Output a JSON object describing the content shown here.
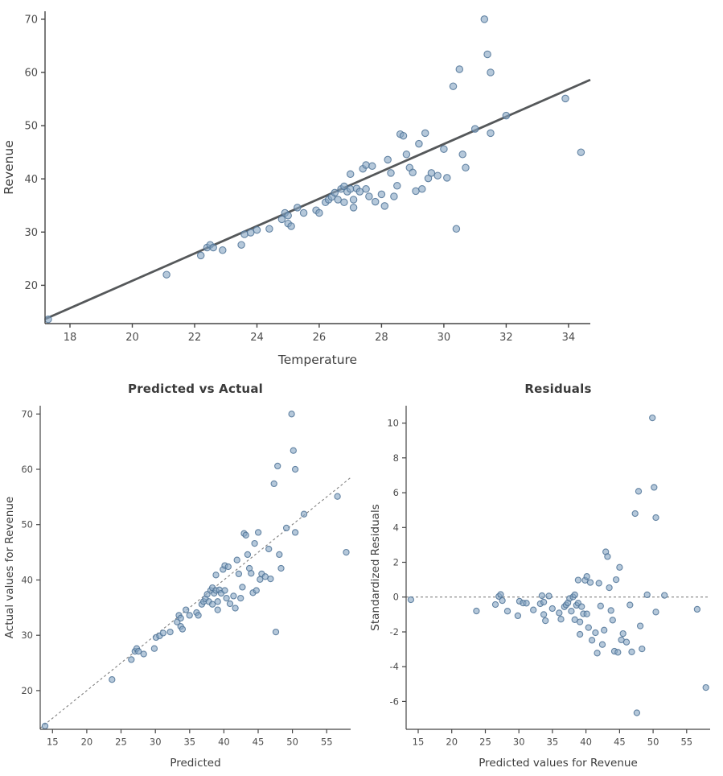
{
  "colors": {
    "point_fill": "#87a7c3",
    "point_stroke": "#4f7396",
    "fit_line": "#55585a",
    "dashed_line": "#808080",
    "axis": "#454545",
    "tick_text": "#4d4d4d",
    "label_text": "#3d3d3d",
    "title_text": "#3a3a3a"
  },
  "chart_data": [
    {
      "type": "scatter",
      "title": "",
      "xlabel": "Temperature",
      "ylabel": "Revenue",
      "xlim": [
        17.2,
        34.7
      ],
      "ylim": [
        12.8,
        71.5
      ],
      "xticks": [
        18,
        20,
        22,
        24,
        26,
        28,
        30,
        32,
        34
      ],
      "yticks": [
        20,
        30,
        40,
        50,
        60,
        70
      ],
      "x_field": "temperature",
      "y_field": "revenue",
      "grid": false,
      "legend": "none",
      "line": {
        "kind": "regression-fit",
        "slope": 2.57,
        "intercept": -30.55,
        "style": "solid"
      }
    },
    {
      "type": "scatter",
      "title": "Predicted vs Actual",
      "xlabel": "Predicted",
      "ylabel": "Actual values for Revenue",
      "xlim": [
        13.2,
        58.5
      ],
      "ylim": [
        13.0,
        71.5
      ],
      "xticks": [
        15,
        20,
        25,
        30,
        35,
        40,
        45,
        50,
        55
      ],
      "yticks": [
        20,
        30,
        40,
        50,
        60,
        70
      ],
      "x_field": "predicted",
      "y_field": "revenue",
      "grid": false,
      "legend": "none",
      "line": {
        "kind": "identity",
        "slope": 1,
        "intercept": 0,
        "style": "dashed"
      }
    },
    {
      "type": "scatter",
      "title": "Residuals",
      "xlabel": "Predicted values for Revenue",
      "ylabel": "Standardized Residuals",
      "xlim": [
        13.2,
        58.5
      ],
      "ylim": [
        -7.6,
        11.0
      ],
      "xticks": [
        15,
        20,
        25,
        30,
        35,
        40,
        45,
        50,
        55
      ],
      "yticks": [
        -6,
        -4,
        -2,
        0,
        2,
        4,
        6,
        8,
        10
      ],
      "x_field": "predicted",
      "y_field": "std_residual",
      "grid": false,
      "legend": "none",
      "line": {
        "kind": "zero-reference",
        "slope": 0,
        "intercept": 0,
        "style": "dashed"
      }
    }
  ],
  "points": [
    {
      "temperature": 17.3,
      "revenue": 13.6,
      "predicted": 13.91,
      "std_residual": -0.15
    },
    {
      "temperature": 21.1,
      "revenue": 22.0,
      "predicted": 23.68,
      "std_residual": -0.8
    },
    {
      "temperature": 22.2,
      "revenue": 25.6,
      "predicted": 26.5,
      "std_residual": -0.43
    },
    {
      "temperature": 22.4,
      "revenue": 27.1,
      "predicted": 27.02,
      "std_residual": 0.04
    },
    {
      "temperature": 22.5,
      "revenue": 27.6,
      "predicted": 27.28,
      "std_residual": 0.15
    },
    {
      "temperature": 22.6,
      "revenue": 27.1,
      "predicted": 27.53,
      "std_residual": -0.2
    },
    {
      "temperature": 22.9,
      "revenue": 26.6,
      "predicted": 28.3,
      "std_residual": -0.81
    },
    {
      "temperature": 23.5,
      "revenue": 27.6,
      "predicted": 29.85,
      "std_residual": -1.07
    },
    {
      "temperature": 23.6,
      "revenue": 29.6,
      "predicted": 30.1,
      "std_residual": -0.24
    },
    {
      "temperature": 23.8,
      "revenue": 29.9,
      "predicted": 30.62,
      "std_residual": -0.34
    },
    {
      "temperature": 24.0,
      "revenue": 30.4,
      "predicted": 31.13,
      "std_residual": -0.35
    },
    {
      "temperature": 24.4,
      "revenue": 30.6,
      "predicted": 32.16,
      "std_residual": -0.74
    },
    {
      "temperature": 24.8,
      "revenue": 32.4,
      "predicted": 33.19,
      "std_residual": -0.38
    },
    {
      "temperature": 24.9,
      "revenue": 33.6,
      "predicted": 33.44,
      "std_residual": 0.08
    },
    {
      "temperature": 25.0,
      "revenue": 33.1,
      "predicted": 33.7,
      "std_residual": -0.29
    },
    {
      "temperature": 25.0,
      "revenue": 31.6,
      "predicted": 33.7,
      "std_residual": -1.0
    },
    {
      "temperature": 25.1,
      "revenue": 31.1,
      "predicted": 33.96,
      "std_residual": -1.36
    },
    {
      "temperature": 25.3,
      "revenue": 34.6,
      "predicted": 34.47,
      "std_residual": 0.06
    },
    {
      "temperature": 25.5,
      "revenue": 33.6,
      "predicted": 34.99,
      "std_residual": -0.66
    },
    {
      "temperature": 25.9,
      "revenue": 34.1,
      "predicted": 36.01,
      "std_residual": -0.91
    },
    {
      "temperature": 26.0,
      "revenue": 33.6,
      "predicted": 36.27,
      "std_residual": -1.27
    },
    {
      "temperature": 26.2,
      "revenue": 35.6,
      "predicted": 36.78,
      "std_residual": -0.56
    },
    {
      "temperature": 26.3,
      "revenue": 36.1,
      "predicted": 37.04,
      "std_residual": -0.45
    },
    {
      "temperature": 26.4,
      "revenue": 36.6,
      "predicted": 37.3,
      "std_residual": -0.33
    },
    {
      "temperature": 26.5,
      "revenue": 37.4,
      "predicted": 37.56,
      "std_residual": -0.08
    },
    {
      "temperature": 26.6,
      "revenue": 36.1,
      "predicted": 37.81,
      "std_residual": -0.81
    },
    {
      "temperature": 26.7,
      "revenue": 38.1,
      "predicted": 38.07,
      "std_residual": 0.01
    },
    {
      "temperature": 26.8,
      "revenue": 38.6,
      "predicted": 38.33,
      "std_residual": 0.13
    },
    {
      "temperature": 26.8,
      "revenue": 35.6,
      "predicted": 38.33,
      "std_residual": -1.3
    },
    {
      "temperature": 26.9,
      "revenue": 37.6,
      "predicted": 38.58,
      "std_residual": -0.47
    },
    {
      "temperature": 27.0,
      "revenue": 40.9,
      "predicted": 38.84,
      "std_residual": 0.98
    },
    {
      "temperature": 27.0,
      "revenue": 38.1,
      "predicted": 38.84,
      "std_residual": -0.35
    },
    {
      "temperature": 27.1,
      "revenue": 36.1,
      "predicted": 39.1,
      "std_residual": -1.43
    },
    {
      "temperature": 27.1,
      "revenue": 34.6,
      "predicted": 39.1,
      "std_residual": -2.14
    },
    {
      "temperature": 27.2,
      "revenue": 38.2,
      "predicted": 39.35,
      "std_residual": -0.55
    },
    {
      "temperature": 27.3,
      "revenue": 37.6,
      "predicted": 39.61,
      "std_residual": -0.96
    },
    {
      "temperature": 27.4,
      "revenue": 41.9,
      "predicted": 39.87,
      "std_residual": 0.97
    },
    {
      "temperature": 27.5,
      "revenue": 42.6,
      "predicted": 40.13,
      "std_residual": 1.18
    },
    {
      "temperature": 27.5,
      "revenue": 38.1,
      "predicted": 40.13,
      "std_residual": -0.97
    },
    {
      "temperature": 27.6,
      "revenue": 36.7,
      "predicted": 40.38,
      "std_residual": -1.75
    },
    {
      "temperature": 27.7,
      "revenue": 42.4,
      "predicted": 40.64,
      "std_residual": 0.84
    },
    {
      "temperature": 27.8,
      "revenue": 35.7,
      "predicted": 40.9,
      "std_residual": -2.48
    },
    {
      "temperature": 28.0,
      "revenue": 37.1,
      "predicted": 41.41,
      "std_residual": -2.05
    },
    {
      "temperature": 28.1,
      "revenue": 34.9,
      "predicted": 41.67,
      "std_residual": -3.22
    },
    {
      "temperature": 28.2,
      "revenue": 43.6,
      "predicted": 41.92,
      "std_residual": 0.8
    },
    {
      "temperature": 28.3,
      "revenue": 41.1,
      "predicted": 42.18,
      "std_residual": -0.51
    },
    {
      "temperature": 28.4,
      "revenue": 36.7,
      "predicted": 42.44,
      "std_residual": -2.73
    },
    {
      "temperature": 28.5,
      "revenue": 38.7,
      "predicted": 42.7,
      "std_residual": -1.9
    },
    {
      "temperature": 28.6,
      "revenue": 48.4,
      "predicted": 42.95,
      "std_residual": 2.6
    },
    {
      "temperature": 28.7,
      "revenue": 48.1,
      "predicted": 43.21,
      "std_residual": 2.33
    },
    {
      "temperature": 28.8,
      "revenue": 44.6,
      "predicted": 43.47,
      "std_residual": 0.54
    },
    {
      "temperature": 28.9,
      "revenue": 42.1,
      "predicted": 43.72,
      "std_residual": -0.77
    },
    {
      "temperature": 29.0,
      "revenue": 41.2,
      "predicted": 43.98,
      "std_residual": -1.32
    },
    {
      "temperature": 29.1,
      "revenue": 37.7,
      "predicted": 44.24,
      "std_residual": -3.11
    },
    {
      "temperature": 29.2,
      "revenue": 46.6,
      "predicted": 44.49,
      "std_residual": 1.0
    },
    {
      "temperature": 29.3,
      "revenue": 38.1,
      "predicted": 44.75,
      "std_residual": -3.17
    },
    {
      "temperature": 29.4,
      "revenue": 48.6,
      "predicted": 45.01,
      "std_residual": 1.71
    },
    {
      "temperature": 29.5,
      "revenue": 40.1,
      "predicted": 45.27,
      "std_residual": -2.46
    },
    {
      "temperature": 29.6,
      "revenue": 41.1,
      "predicted": 45.52,
      "std_residual": -2.1
    },
    {
      "temperature": 29.8,
      "revenue": 40.6,
      "predicted": 46.04,
      "std_residual": -2.59
    },
    {
      "temperature": 30.0,
      "revenue": 45.6,
      "predicted": 46.55,
      "std_residual": -0.45
    },
    {
      "temperature": 30.1,
      "revenue": 40.2,
      "predicted": 46.81,
      "std_residual": -3.15
    },
    {
      "temperature": 30.3,
      "revenue": 57.4,
      "predicted": 47.32,
      "std_residual": 4.8
    },
    {
      "temperature": 30.4,
      "revenue": 30.6,
      "predicted": 47.58,
      "std_residual": -6.65
    },
    {
      "temperature": 30.5,
      "revenue": 60.6,
      "predicted": 47.84,
      "std_residual": 6.08
    },
    {
      "temperature": 30.6,
      "revenue": 44.6,
      "predicted": 48.09,
      "std_residual": -1.66
    },
    {
      "temperature": 30.7,
      "revenue": 42.1,
      "predicted": 48.35,
      "std_residual": -2.98
    },
    {
      "temperature": 31.0,
      "revenue": 49.4,
      "predicted": 49.12,
      "std_residual": 0.13
    },
    {
      "temperature": 31.3,
      "revenue": 70.0,
      "predicted": 49.89,
      "std_residual": 10.3
    },
    {
      "temperature": 31.4,
      "revenue": 63.4,
      "predicted": 50.15,
      "std_residual": 6.31
    },
    {
      "temperature": 31.5,
      "revenue": 60.0,
      "predicted": 50.41,
      "std_residual": 4.57
    },
    {
      "temperature": 31.5,
      "revenue": 48.6,
      "predicted": 50.41,
      "std_residual": -0.86
    },
    {
      "temperature": 32.0,
      "revenue": 51.9,
      "predicted": 51.69,
      "std_residual": 0.1
    },
    {
      "temperature": 33.9,
      "revenue": 55.1,
      "predicted": 56.57,
      "std_residual": -0.7
    },
    {
      "temperature": 34.4,
      "revenue": 45.0,
      "predicted": 57.86,
      "std_residual": -5.2
    }
  ]
}
